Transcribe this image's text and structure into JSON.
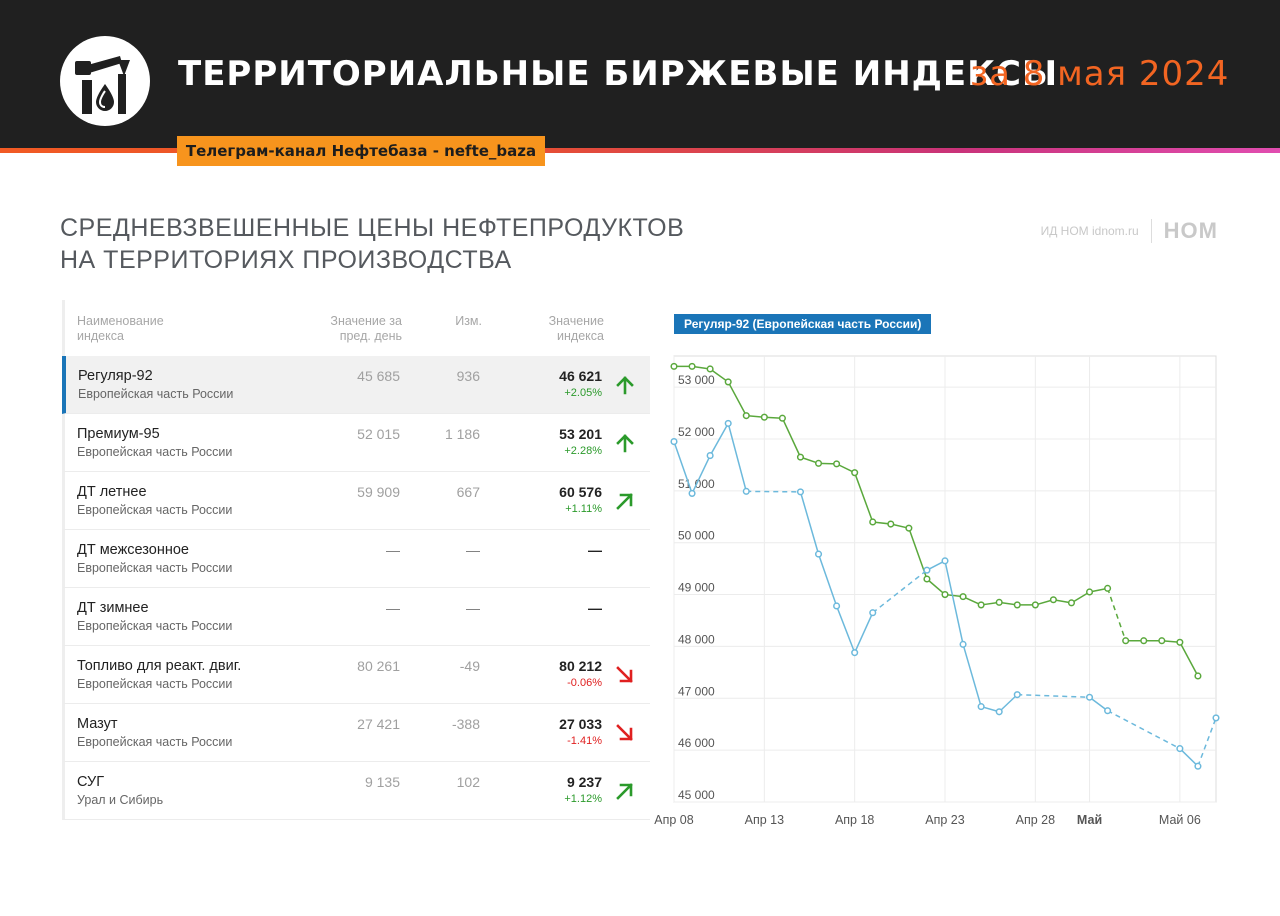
{
  "header": {
    "title": "ТЕРРИТОРИАЛЬНЫЕ БИРЖЕВЫЕ ИНДЕКСЫ",
    "date": "за 8 мая 2024",
    "channel": "Телеграм-канал Нефтебаза - nefte_baza",
    "logo_icon": "oil-pump-drop-icon"
  },
  "section": {
    "title_line1": "СРЕДНЕВЗВЕШЕННЫЕ ЦЕНЫ НЕФТЕПРОДУКТОВ",
    "title_line2": "НА ТЕРРИТОРИЯХ ПРОИЗВОДСТВА",
    "brand_small": "ИД НОМ idnom.ru",
    "brand_logo": "НОМ"
  },
  "table": {
    "headers": {
      "name_line1": "Наименование",
      "name_line2": "индекса",
      "prev_line1": "Значение за",
      "prev_line2": "пред. день",
      "chg": "Изм.",
      "val_line1": "Значение",
      "val_line2": "индекса"
    },
    "rows": [
      {
        "name": "Регуляр-92",
        "region": "Европейская часть России",
        "prev": "45 685",
        "chg": "936",
        "value": "46 621",
        "pct": "+2.05%",
        "trend": "up"
      },
      {
        "name": "Премиум-95",
        "region": "Европейская часть России",
        "prev": "52 015",
        "chg": "1 186",
        "value": "53 201",
        "pct": "+2.28%",
        "trend": "up"
      },
      {
        "name": "ДТ летнее",
        "region": "Европейская часть России",
        "prev": "59 909",
        "chg": "667",
        "value": "60 576",
        "pct": "+1.11%",
        "trend": "up-right"
      },
      {
        "name": "ДТ межсезонное",
        "region": "Европейская часть России",
        "prev": "—",
        "chg": "—",
        "value": "—",
        "pct": "",
        "trend": "none"
      },
      {
        "name": "ДТ зимнее",
        "region": "Европейская часть России",
        "prev": "—",
        "chg": "—",
        "value": "—",
        "pct": "",
        "trend": "none"
      },
      {
        "name": "Топливо для реакт. двиг.",
        "region": "Европейская часть России",
        "prev": "80 261",
        "chg": "-49",
        "value": "80 212",
        "pct": "-0.06%",
        "trend": "down-right"
      },
      {
        "name": "Мазут",
        "region": "Европейская часть России",
        "prev": "27 421",
        "chg": "-388",
        "value": "27 033",
        "pct": "-1.41%",
        "trend": "down-right"
      },
      {
        "name": "СУГ",
        "region": "Урал и Сибирь",
        "prev": "9 135",
        "chg": "102",
        "value": "9 237",
        "pct": "+1.12%",
        "trend": "up-right"
      }
    ],
    "colors": {
      "up": "#2b9a2b",
      "down": "#e02020",
      "active": "#1a75b8"
    }
  },
  "chart_data": {
    "type": "line",
    "title": "Регуляр-92 (Европейская часть России)",
    "ylim": [
      45000,
      53600
    ],
    "yticks": [
      45000,
      46000,
      47000,
      48000,
      49000,
      50000,
      51000,
      52000,
      53000
    ],
    "ytick_labels": [
      "45 000",
      "46 000",
      "47 000",
      "48 000",
      "49 000",
      "50 000",
      "51 000",
      "52 000",
      "53 000"
    ],
    "xlim": [
      "2024-04-08",
      "2024-05-08"
    ],
    "xticks": [
      "2024-04-08",
      "2024-04-13",
      "2024-04-18",
      "2024-04-23",
      "2024-04-28",
      "2024-05-01",
      "2024-05-06"
    ],
    "xtick_labels": [
      "Апр 08",
      "Апр 13",
      "Апр 18",
      "Апр 23",
      "Апр 28",
      "Май",
      "Май 06"
    ],
    "grid": true,
    "series": [
      {
        "color": "#5aa83c",
        "points": [
          [
            "2024-04-08",
            53400
          ],
          [
            "2024-04-09",
            53400
          ],
          [
            "2024-04-10",
            53350
          ],
          [
            "2024-04-11",
            53100
          ],
          [
            "2024-04-12",
            52450
          ],
          [
            "2024-04-13",
            52420
          ],
          [
            "2024-04-14",
            52400
          ],
          [
            "2024-04-15",
            51650
          ],
          [
            "2024-04-16",
            51530
          ],
          [
            "2024-04-17",
            51520
          ],
          [
            "2024-04-18",
            51350
          ],
          [
            "2024-04-19",
            50400
          ],
          [
            "2024-04-20",
            50360
          ],
          [
            "2024-04-21",
            50280
          ],
          [
            "2024-04-22",
            49300
          ],
          [
            "2024-04-23",
            49000
          ],
          [
            "2024-04-24",
            48960
          ],
          [
            "2024-04-25",
            48800
          ],
          [
            "2024-04-26",
            48850
          ],
          [
            "2024-04-27",
            48800
          ],
          [
            "2024-04-28",
            48800
          ],
          [
            "2024-04-29",
            48900
          ],
          [
            "2024-04-30",
            48840
          ],
          [
            "2024-05-01",
            49050
          ],
          [
            "2024-05-02",
            49120
          ],
          [
            "2024-05-03",
            48110
          ],
          [
            "2024-05-04",
            48110
          ],
          [
            "2024-05-05",
            48110
          ],
          [
            "2024-05-06",
            48080
          ],
          [
            "2024-05-07",
            47430
          ]
        ],
        "dashed_after": [
          "2024-05-02"
        ]
      },
      {
        "color": "#6cb9dc",
        "points": [
          [
            "2024-04-08",
            51950
          ],
          [
            "2024-04-09",
            50950
          ],
          [
            "2024-04-10",
            51680
          ],
          [
            "2024-04-11",
            52300
          ],
          [
            "2024-04-12",
            50990
          ],
          [
            "2024-04-15",
            50980
          ],
          [
            "2024-04-16",
            49780
          ],
          [
            "2024-04-17",
            48780
          ],
          [
            "2024-04-18",
            47880
          ],
          [
            "2024-04-19",
            48650
          ],
          [
            "2024-04-22",
            49470
          ],
          [
            "2024-04-23",
            49650
          ],
          [
            "2024-04-24",
            48040
          ],
          [
            "2024-04-25",
            46840
          ],
          [
            "2024-04-26",
            46740
          ],
          [
            "2024-04-27",
            47070
          ],
          [
            "2024-05-01",
            47020
          ],
          [
            "2024-05-02",
            46760
          ],
          [
            "2024-05-06",
            46030
          ],
          [
            "2024-05-07",
            45690
          ],
          [
            "2024-05-08",
            46621
          ]
        ],
        "dashed_after": [
          "2024-04-19",
          "2024-04-27",
          "2024-05-02",
          "2024-05-07"
        ]
      }
    ]
  }
}
